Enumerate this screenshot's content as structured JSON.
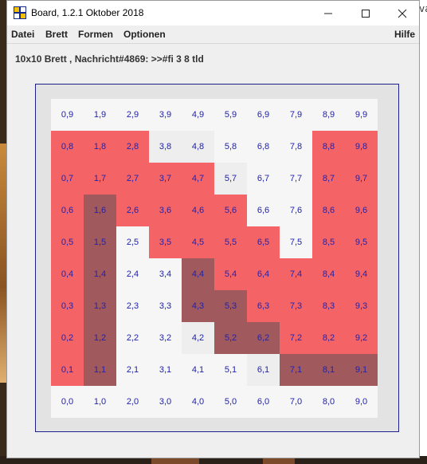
{
  "window": {
    "title": "Board, 1.2.1 Oktober 2018"
  },
  "menu": {
    "items": [
      "Datei",
      "Brett",
      "Formen",
      "Optionen"
    ],
    "help": "Hilfe"
  },
  "status": "10x10 Brett , Nachricht#4869: >>#fi 3 8 tld",
  "board": {
    "size": 10,
    "colors": {
      "w": "#f6f6f6",
      "g": "#eeeeee",
      "r": "#f46467",
      "d": "#a05a5e"
    },
    "rows": [
      "wwwwwwwwww",
      "rrrggwwwrr",
      "rrrrrgwwrr",
      "rdrrrrwwrr",
      "rdwrrrrwrr",
      "rdwwdrrrrr",
      "rdwwddrrrr",
      "rdwwgddrrr",
      "rdwwwwgddd",
      "wwwwwwwwww"
    ]
  }
}
